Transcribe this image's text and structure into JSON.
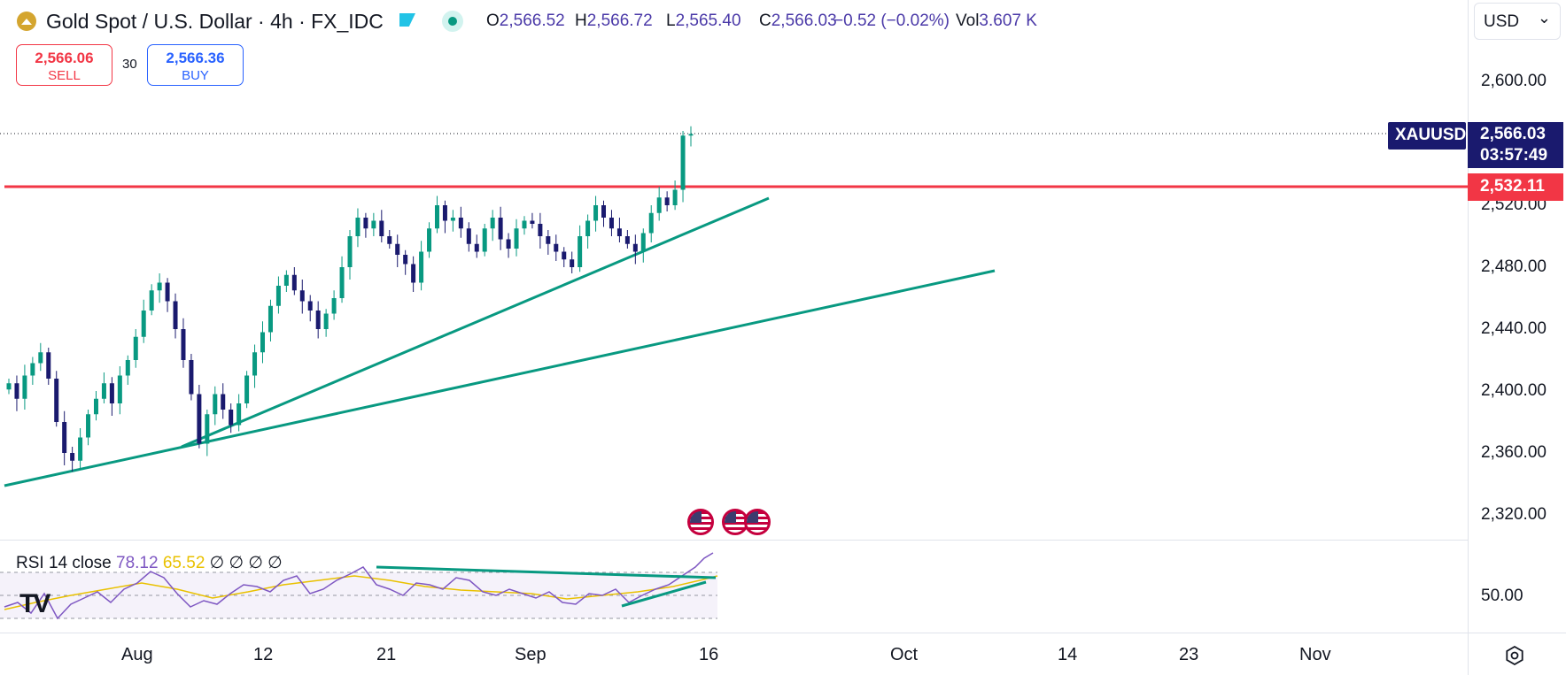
{
  "header": {
    "symbol_title": "Gold Spot / U.S. Dollar · 4h · FX_IDC",
    "ohlc": [
      {
        "k": "O",
        "v": "2,566.52"
      },
      {
        "k": "H",
        "v": "2,566.72"
      },
      {
        "k": "L",
        "v": "2,565.40"
      },
      {
        "k": "C",
        "v": "2,566.03"
      }
    ],
    "change": "−0.52 (−0.02%)",
    "vol_label": "Vol",
    "vol_value": "3.607 K",
    "live_icon": "live-dot-icon",
    "flag_icon": "flag-icon"
  },
  "trade": {
    "sell_price": "2,566.06",
    "sell_label": "SELL",
    "buy_price": "2,566.36",
    "buy_label": "BUY",
    "spread": "30"
  },
  "currency_selector": "USD",
  "price_axis": {
    "labels": [
      "2,600.00",
      "2,520.00",
      "2,480.00",
      "2,440.00",
      "2,400.00",
      "2,360.00",
      "2,320.00"
    ]
  },
  "tags": {
    "symbol": "XAUUSD",
    "last_price": "2,566.03",
    "countdown": "03:57:49",
    "line_price": "2,532.11"
  },
  "rsi": {
    "title": "RSI 14 close",
    "value": "78.12",
    "ma_value": "65.52",
    "extra": "∅ ∅ ∅ ∅",
    "level": "50.00"
  },
  "time_axis": [
    "Aug",
    "12",
    "21",
    "Sep",
    "16",
    "Oct",
    "14",
    "23",
    "Nov"
  ],
  "colors": {
    "up": "#089981",
    "down": "#1a1a6e",
    "resistance": "#f23645",
    "trendline": "#089981",
    "rsi": "#7e57c2",
    "rsi_ma": "#e9c100"
  },
  "chart_data": {
    "type": "candlestick",
    "symbol": "XAUUSD",
    "timeframe": "4h",
    "ylim": [
      2300,
      2625
    ],
    "close_series": [
      2405,
      2395,
      2410,
      2418,
      2425,
      2408,
      2380,
      2360,
      2355,
      2370,
      2385,
      2395,
      2405,
      2392,
      2410,
      2420,
      2435,
      2452,
      2465,
      2470,
      2458,
      2440,
      2420,
      2398,
      2366,
      2385,
      2398,
      2388,
      2378,
      2392,
      2410,
      2425,
      2438,
      2455,
      2468,
      2475,
      2465,
      2458,
      2452,
      2440,
      2450,
      2460,
      2480,
      2500,
      2512,
      2505,
      2510,
      2500,
      2495,
      2488,
      2482,
      2470,
      2490,
      2505,
      2520,
      2510,
      2512,
      2505,
      2495,
      2490,
      2505,
      2512,
      2498,
      2492,
      2505,
      2510,
      2508,
      2500,
      2495,
      2490,
      2485,
      2480,
      2500,
      2510,
      2520,
      2512,
      2505,
      2500,
      2495,
      2490,
      2502,
      2515,
      2525,
      2520,
      2530,
      2565,
      2566
    ],
    "resistance": 2532.11,
    "last": 2566.03,
    "rsi_level": 50
  }
}
